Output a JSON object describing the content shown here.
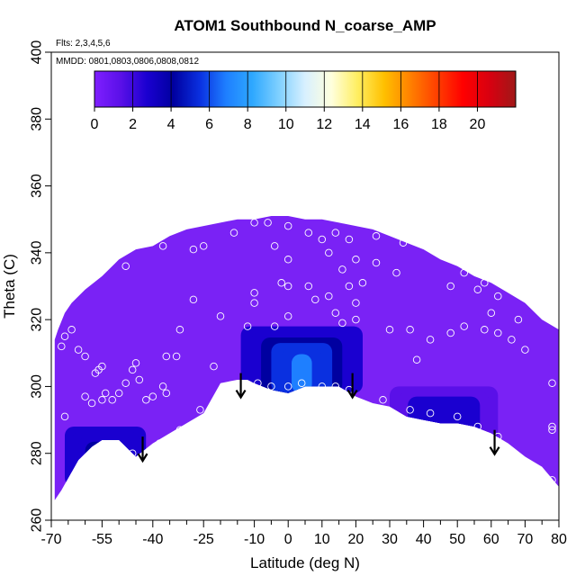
{
  "chart_data": {
    "type": "heatmap",
    "title": "ATOM1 Southbound N_coarse_AMP",
    "notes": [
      "Flts: 2,3,4,5,6",
      "MMDD: 0801,0803,0806,0808,0812"
    ],
    "xlabel": "Latitude (deg N)",
    "ylabel": "Theta (C)",
    "xlim": [
      -70,
      80
    ],
    "ylim": [
      260,
      400
    ],
    "x_ticks": [
      -70,
      -55,
      -40,
      -25,
      -10,
      0,
      10,
      20,
      30,
      40,
      50,
      60,
      70,
      80
    ],
    "x_tick_labels": [
      "-70",
      "-55",
      "-40",
      "-25",
      "-10",
      "0",
      "10",
      "20",
      "30",
      "40",
      "50",
      "60",
      "70",
      "80"
    ],
    "x_minor_ticks": [
      -65,
      -60,
      -50,
      -45,
      -35,
      -30,
      -20,
      -15,
      -5,
      5,
      15,
      25,
      35,
      45,
      55,
      65,
      75
    ],
    "y_ticks": [
      260,
      280,
      300,
      320,
      340,
      360,
      380,
      400
    ],
    "y_tick_labels": [
      "260",
      "280",
      "300",
      "320",
      "340",
      "360",
      "380",
      "400"
    ],
    "colorbar": {
      "range": [
        0,
        22
      ],
      "ticks": [
        0,
        2,
        4,
        6,
        8,
        10,
        12,
        14,
        16,
        18,
        20
      ],
      "tick_labels": [
        "0",
        "2",
        "4",
        "6",
        "8",
        "10",
        "12",
        "14",
        "16",
        "18",
        "20"
      ],
      "colors": [
        "#7f1fff",
        "#5a10e8",
        "#1a00d0",
        "#0000a0",
        "#0a30e0",
        "#1e7fff",
        "#2ea8ff",
        "#7fd0ff",
        "#d8f0ff",
        "#ffffdd",
        "#ffee60",
        "#ffc000",
        "#ff8000",
        "#ff4000",
        "#ff0000",
        "#d80010",
        "#a01818"
      ]
    },
    "tropopause_curve": {
      "lat": [
        -69,
        -67,
        -62,
        -58,
        -55,
        -50,
        -45,
        -40,
        -35,
        -30,
        -25,
        -20,
        -15,
        -12,
        -10,
        -5,
        0,
        5,
        10,
        15,
        20,
        25,
        30,
        35,
        40,
        45,
        50,
        55,
        60,
        65,
        70,
        75,
        80
      ],
      "theta": [
        266,
        269,
        278,
        282,
        284,
        284,
        279,
        283,
        286,
        289,
        292,
        301,
        302,
        302,
        301,
        299,
        298,
        300,
        300,
        300,
        297,
        295,
        294,
        291,
        290,
        289,
        289,
        288,
        286,
        283,
        279,
        276,
        270
      ]
    },
    "top_curve": {
      "lat": [
        -69,
        -68,
        -66,
        -64,
        -60,
        -55,
        -50,
        -45,
        -40,
        -35,
        -30,
        -25,
        -20,
        -15,
        -10,
        -5,
        0,
        5,
        10,
        15,
        20,
        25,
        30,
        35,
        40,
        45,
        50,
        55,
        60,
        65,
        70,
        75,
        80
      ],
      "theta": [
        314,
        317,
        322,
        325,
        329,
        333,
        338,
        341,
        342,
        345,
        347,
        348,
        349,
        350,
        350,
        351,
        351,
        350,
        350,
        349,
        348,
        347,
        345,
        343,
        341,
        338,
        336,
        333,
        331,
        328,
        325,
        320,
        317
      ]
    },
    "high_regions": [
      {
        "label": "tropical core",
        "lat_range": [
          -14,
          22
        ],
        "theta_range": [
          298,
          318
        ],
        "peak": 7
      },
      {
        "label": "southern high-lat",
        "lat_range": [
          -66,
          -42
        ],
        "theta_range": [
          270,
          288
        ],
        "peak": 5
      },
      {
        "label": "northern mid-lat",
        "lat_range": [
          30,
          62
        ],
        "theta_range": [
          282,
          300
        ],
        "peak": 3
      }
    ],
    "arrows": [
      {
        "lat": -43,
        "theta_start": 285,
        "theta_end": 278
      },
      {
        "lat": -14,
        "theta_start": 304,
        "theta_end": 297
      },
      {
        "lat": 19,
        "theta_start": 304,
        "theta_end": 297
      },
      {
        "lat": 61,
        "theta_start": 287,
        "theta_end": 280
      }
    ],
    "sample_points": [
      {
        "lat": -67,
        "theta": 312
      },
      {
        "lat": -66,
        "theta": 315
      },
      {
        "lat": -64,
        "theta": 317
      },
      {
        "lat": -62,
        "theta": 311
      },
      {
        "lat": -60,
        "theta": 309
      },
      {
        "lat": -57,
        "theta": 304
      },
      {
        "lat": -56,
        "theta": 305
      },
      {
        "lat": -55,
        "theta": 306
      },
      {
        "lat": -54,
        "theta": 298
      },
      {
        "lat": -52,
        "theta": 296
      },
      {
        "lat": -50,
        "theta": 298
      },
      {
        "lat": -48,
        "theta": 301
      },
      {
        "lat": -46,
        "theta": 305
      },
      {
        "lat": -45,
        "theta": 307
      },
      {
        "lat": -44,
        "theta": 302
      },
      {
        "lat": -42,
        "theta": 296
      },
      {
        "lat": -40,
        "theta": 297
      },
      {
        "lat": -37,
        "theta": 300
      },
      {
        "lat": -36,
        "theta": 298
      },
      {
        "lat": -33,
        "theta": 309
      },
      {
        "lat": -58,
        "theta": 277
      },
      {
        "lat": -54,
        "theta": 278
      },
      {
        "lat": -50,
        "theta": 280
      },
      {
        "lat": -46,
        "theta": 280
      },
      {
        "lat": -42,
        "theta": 279
      },
      {
        "lat": -38,
        "theta": 283
      },
      {
        "lat": -32,
        "theta": 287
      },
      {
        "lat": -26,
        "theta": 293
      },
      {
        "lat": -22,
        "theta": 306
      },
      {
        "lat": -14,
        "theta": 300
      },
      {
        "lat": -9,
        "theta": 301
      },
      {
        "lat": -5,
        "theta": 300
      },
      {
        "lat": 0,
        "theta": 300
      },
      {
        "lat": 4,
        "theta": 301
      },
      {
        "lat": 10,
        "theta": 300
      },
      {
        "lat": 14,
        "theta": 300
      },
      {
        "lat": 18,
        "theta": 299
      },
      {
        "lat": 28,
        "theta": 296
      },
      {
        "lat": 36,
        "theta": 293
      },
      {
        "lat": 42,
        "theta": 292
      },
      {
        "lat": 50,
        "theta": 291
      },
      {
        "lat": 56,
        "theta": 288
      },
      {
        "lat": 62,
        "theta": 285
      },
      {
        "lat": 78,
        "theta": 287
      },
      {
        "lat": -66,
        "theta": 291
      },
      {
        "lat": -60,
        "theta": 297
      },
      {
        "lat": -58,
        "theta": 295
      },
      {
        "lat": -55,
        "theta": 296
      },
      {
        "lat": -48,
        "theta": 336
      },
      {
        "lat": -37,
        "theta": 342
      },
      {
        "lat": -28,
        "theta": 341
      },
      {
        "lat": -25,
        "theta": 342
      },
      {
        "lat": -16,
        "theta": 346
      },
      {
        "lat": -10,
        "theta": 349
      },
      {
        "lat": -6,
        "theta": 349
      },
      {
        "lat": 0,
        "theta": 348
      },
      {
        "lat": 6,
        "theta": 346
      },
      {
        "lat": 10,
        "theta": 344
      },
      {
        "lat": 14,
        "theta": 346
      },
      {
        "lat": 18,
        "theta": 344
      },
      {
        "lat": 26,
        "theta": 345
      },
      {
        "lat": 34,
        "theta": 343
      },
      {
        "lat": 44,
        "theta": 342
      },
      {
        "lat": 20,
        "theta": 338
      },
      {
        "lat": 26,
        "theta": 337
      },
      {
        "lat": -4,
        "theta": 342
      },
      {
        "lat": 0,
        "theta": 338
      },
      {
        "lat": 12,
        "theta": 340
      },
      {
        "lat": 16,
        "theta": 335
      },
      {
        "lat": 22,
        "theta": 331
      },
      {
        "lat": 32,
        "theta": 334
      },
      {
        "lat": 48,
        "theta": 330
      },
      {
        "lat": 52,
        "theta": 334
      },
      {
        "lat": 58,
        "theta": 331
      },
      {
        "lat": 62,
        "theta": 327
      },
      {
        "lat": -2,
        "theta": 331
      },
      {
        "lat": 0,
        "theta": 330
      },
      {
        "lat": 6,
        "theta": 330
      },
      {
        "lat": 12,
        "theta": 327
      },
      {
        "lat": 18,
        "theta": 330
      },
      {
        "lat": -10,
        "theta": 328
      },
      {
        "lat": -28,
        "theta": 326
      },
      {
        "lat": -20,
        "theta": 321
      },
      {
        "lat": -10,
        "theta": 325
      },
      {
        "lat": 0,
        "theta": 321
      },
      {
        "lat": 8,
        "theta": 326
      },
      {
        "lat": 14,
        "theta": 322
      },
      {
        "lat": 20,
        "theta": 325
      },
      {
        "lat": 16,
        "theta": 319
      },
      {
        "lat": 20,
        "theta": 320
      },
      {
        "lat": 30,
        "theta": 317
      },
      {
        "lat": 36,
        "theta": 317
      },
      {
        "lat": 42,
        "theta": 314
      },
      {
        "lat": 48,
        "theta": 316
      },
      {
        "lat": 52,
        "theta": 318
      },
      {
        "lat": 58,
        "theta": 317
      },
      {
        "lat": 62,
        "theta": 316
      },
      {
        "lat": 66,
        "theta": 314
      },
      {
        "lat": 70,
        "theta": 311
      },
      {
        "lat": 60,
        "theta": 322
      },
      {
        "lat": 68,
        "theta": 320
      },
      {
        "lat": 74,
        "theta": 327
      },
      {
        "lat": 76,
        "theta": 331
      },
      {
        "lat": 56,
        "theta": 329
      },
      {
        "lat": -32,
        "theta": 317
      },
      {
        "lat": 78,
        "theta": 301
      },
      {
        "lat": 78,
        "theta": 288
      },
      {
        "lat": 78,
        "theta": 272
      },
      {
        "lat": 38,
        "theta": 308
      },
      {
        "lat": -36,
        "theta": 309
      },
      {
        "lat": -12,
        "theta": 318
      },
      {
        "lat": -4,
        "theta": 318
      }
    ]
  }
}
